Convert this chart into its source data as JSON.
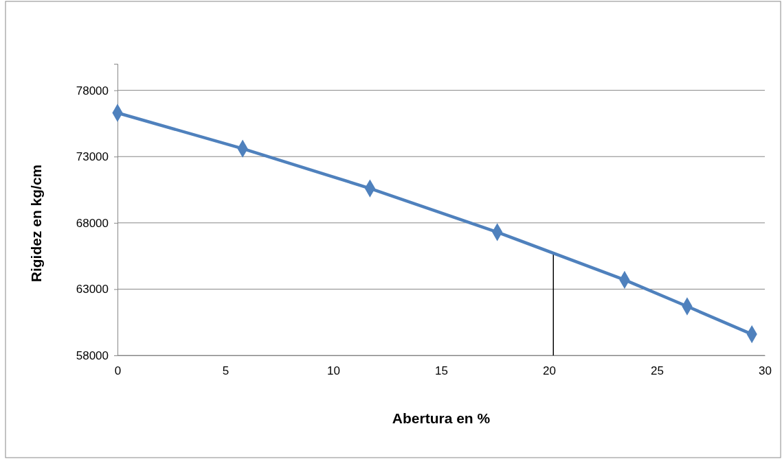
{
  "chart_data": {
    "type": "line",
    "xlabel": "Abertura en %",
    "ylabel": "Rigidez en kg/cm",
    "x": [
      0,
      5.8,
      11.7,
      17.6,
      23.5,
      26.4,
      29.4
    ],
    "series": [
      {
        "color": "#4f81bd",
        "values": [
          76300,
          73600,
          70600,
          67300,
          63700,
          61700,
          59600
        ]
      }
    ],
    "xlim": [
      0,
      30
    ],
    "xticks": [
      0,
      5,
      10,
      15,
      20,
      25,
      30
    ],
    "ylim": [
      58000,
      80000
    ],
    "yticks": [
      58000,
      63000,
      68000,
      73000,
      78000
    ],
    "grid": "y",
    "marker": "diamond",
    "line_style": "solid",
    "ref_lines": [
      {
        "axis": "x",
        "value": 20.2,
        "color": "#000000"
      }
    ]
  }
}
